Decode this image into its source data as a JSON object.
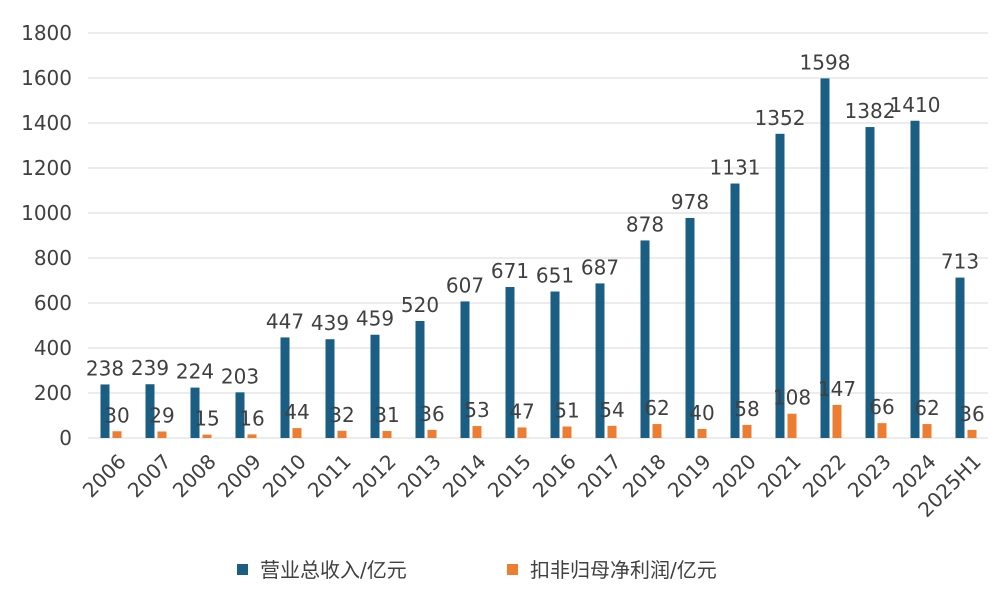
{
  "chart_data": {
    "type": "bar",
    "categories": [
      "2006",
      "2007",
      "2008",
      "2009",
      "2010",
      "2011",
      "2012",
      "2013",
      "2014",
      "2015",
      "2016",
      "2017",
      "2018",
      "2019",
      "2020",
      "2021",
      "2022",
      "2023",
      "2024",
      "2025H1"
    ],
    "series": [
      {
        "name": "营业总收入/亿元",
        "color": "#1b5e84",
        "values": [
          238,
          239,
          224,
          203,
          447,
          439,
          459,
          520,
          607,
          671,
          651,
          687,
          878,
          978,
          1131,
          1352,
          1598,
          1382,
          1410,
          713
        ]
      },
      {
        "name": "扣非归母净利润/亿元",
        "color": "#ed7d31",
        "values": [
          30,
          29,
          15,
          16,
          44,
          32,
          31,
          36,
          53,
          47,
          51,
          54,
          62,
          40,
          58,
          108,
          147,
          66,
          62,
          36
        ]
      }
    ],
    "ylim": [
      0,
      1800
    ],
    "yticks": [
      0,
      200,
      400,
      600,
      800,
      1000,
      1200,
      1400,
      1600,
      1800
    ],
    "grid": true,
    "legend": "bottom"
  }
}
